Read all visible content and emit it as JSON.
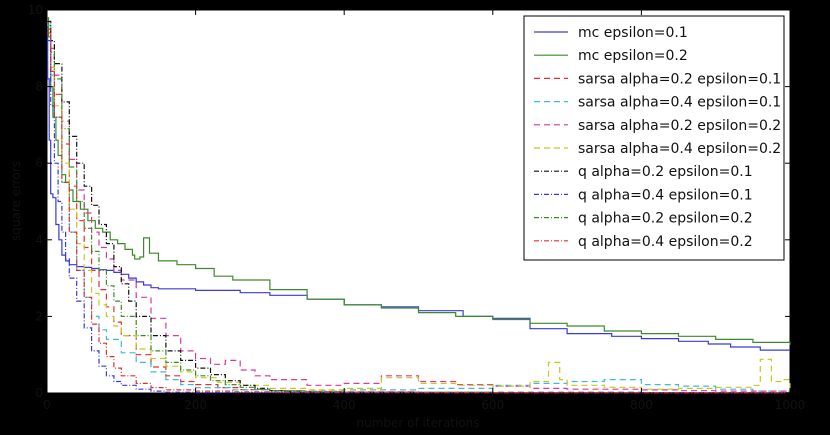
{
  "chart_data": {
    "type": "line",
    "title": "",
    "xlabel": "number of iterations",
    "ylabel": "square errors",
    "xlim": [
      0,
      1000
    ],
    "ylim": [
      0,
      10
    ],
    "xticks": [
      "0",
      "200",
      "400",
      "600",
      "800",
      "1000"
    ],
    "yticks": [
      "0",
      "2",
      "4",
      "6",
      "8",
      "10"
    ],
    "grid": false,
    "legend_position": "top-right",
    "series": [
      {
        "name": "mc epsilon=0.1",
        "color": "#3a3ad8",
        "style": "solid",
        "x": [
          0,
          1,
          3,
          5,
          8,
          12,
          16,
          20,
          25,
          30,
          40,
          50,
          60,
          70,
          80,
          90,
          100,
          110,
          120,
          130,
          140,
          150,
          200,
          260,
          300,
          350,
          400,
          450,
          500,
          560,
          600,
          650,
          700,
          760,
          800,
          850,
          890,
          920,
          960,
          1000
        ],
        "y": [
          9.6,
          8.2,
          6.6,
          5.2,
          5.1,
          4.4,
          4.0,
          3.6,
          3.45,
          3.35,
          3.3,
          3.28,
          3.25,
          3.22,
          3.2,
          3.15,
          3.1,
          3.0,
          2.9,
          2.82,
          2.75,
          2.72,
          2.68,
          2.62,
          2.55,
          2.45,
          2.3,
          2.25,
          2.15,
          2.0,
          1.95,
          1.68,
          1.55,
          1.48,
          1.42,
          1.35,
          1.28,
          1.2,
          1.12,
          1.12
        ]
      },
      {
        "name": "mc epsilon=0.2",
        "color": "#3d8a2a",
        "style": "solid",
        "x": [
          0,
          2,
          5,
          8,
          12,
          15,
          20,
          25,
          30,
          35,
          45,
          55,
          65,
          75,
          85,
          95,
          105,
          115,
          118,
          125,
          130,
          138,
          150,
          175,
          200,
          225,
          250,
          300,
          350,
          400,
          450,
          500,
          550,
          600,
          650,
          700,
          750,
          800,
          850,
          900,
          950,
          1000
        ],
        "y": [
          9.8,
          9.3,
          8.0,
          7.2,
          6.6,
          6.2,
          5.7,
          5.5,
          5.3,
          5.0,
          4.8,
          4.5,
          4.3,
          4.2,
          4.0,
          3.9,
          3.75,
          3.6,
          3.5,
          3.55,
          4.05,
          3.65,
          3.45,
          3.35,
          3.25,
          3.05,
          2.95,
          2.7,
          2.45,
          2.3,
          2.22,
          2.1,
          2.0,
          1.92,
          1.82,
          1.75,
          1.62,
          1.55,
          1.48,
          1.4,
          1.32,
          1.25
        ]
      },
      {
        "name": "sarsa alpha=0.2 epsilon=0.1",
        "color": "#e03030",
        "style": "dashed",
        "x": [
          0,
          5,
          10,
          20,
          30,
          40,
          50,
          60,
          70,
          80,
          90,
          100,
          120,
          140,
          160,
          180,
          200,
          230,
          260,
          300,
          350,
          400,
          500,
          600,
          700,
          800,
          900,
          1000
        ],
        "y": [
          9.4,
          8.4,
          7.8,
          6.5,
          5.4,
          4.5,
          3.8,
          3.2,
          2.7,
          2.25,
          1.85,
          1.5,
          1.0,
          0.68,
          0.45,
          0.3,
          0.22,
          0.14,
          0.09,
          0.06,
          0.04,
          0.03,
          0.02,
          0.02,
          0.02,
          0.01,
          0.01,
          0.01
        ]
      },
      {
        "name": "sarsa alpha=0.4 epsilon=0.1",
        "color": "#3fbcd8",
        "style": "dashed",
        "x": [
          0,
          5,
          10,
          20,
          30,
          40,
          50,
          60,
          70,
          80,
          100,
          120,
          140,
          160,
          180,
          200,
          250,
          300,
          350,
          400,
          500,
          600,
          650,
          700,
          750,
          800,
          850,
          900,
          950,
          1000
        ],
        "y": [
          9.6,
          8.3,
          7.2,
          5.5,
          4.2,
          3.2,
          2.5,
          2.0,
          1.65,
          1.4,
          1.05,
          0.8,
          0.55,
          0.35,
          0.22,
          0.14,
          0.08,
          0.05,
          0.05,
          0.08,
          0.12,
          0.2,
          0.25,
          0.3,
          0.35,
          0.22,
          0.18,
          0.1,
          0.05,
          0.05
        ]
      },
      {
        "name": "sarsa alpha=0.2 epsilon=0.2",
        "color": "#d63a9b",
        "style": "dashed",
        "x": [
          0,
          5,
          10,
          20,
          30,
          40,
          50,
          60,
          70,
          80,
          90,
          100,
          120,
          140,
          160,
          180,
          200,
          220,
          240,
          260,
          280,
          300,
          350,
          400,
          450,
          500,
          550,
          600,
          650,
          700,
          750,
          800,
          850,
          900,
          950,
          1000
        ],
        "y": [
          9.7,
          9.0,
          8.3,
          7.1,
          6.1,
          5.3,
          4.7,
          4.2,
          3.8,
          3.5,
          3.2,
          2.95,
          2.5,
          1.95,
          1.5,
          1.1,
          0.9,
          0.75,
          0.85,
          0.6,
          0.45,
          0.35,
          0.2,
          0.25,
          0.45,
          0.3,
          0.22,
          0.18,
          0.12,
          0.1,
          0.1,
          0.08,
          0.06,
          0.05,
          0.05,
          0.05
        ]
      },
      {
        "name": "sarsa alpha=0.4 epsilon=0.2",
        "color": "#c8c820",
        "style": "dashed",
        "x": [
          0,
          5,
          10,
          20,
          30,
          40,
          50,
          60,
          70,
          80,
          90,
          100,
          120,
          140,
          160,
          180,
          200,
          230,
          260,
          300,
          350,
          400,
          450,
          500,
          550,
          600,
          650,
          675,
          690,
          700,
          750,
          800,
          850,
          900,
          950,
          960,
          975,
          990,
          1000
        ],
        "y": [
          9.7,
          8.5,
          7.5,
          6.0,
          4.8,
          3.9,
          3.2,
          2.6,
          2.3,
          2.0,
          1.75,
          1.5,
          1.15,
          0.9,
          0.7,
          0.55,
          0.4,
          0.28,
          0.2,
          0.12,
          0.08,
          0.12,
          0.4,
          0.25,
          0.2,
          0.18,
          0.3,
          0.8,
          0.35,
          0.2,
          0.15,
          0.1,
          0.12,
          0.15,
          0.2,
          0.88,
          0.3,
          0.35,
          0.1
        ]
      },
      {
        "name": "q alpha=0.2 epsilon=0.1",
        "color": "#111111",
        "style": "dashdot",
        "x": [
          0,
          5,
          10,
          20,
          30,
          40,
          50,
          60,
          70,
          80,
          90,
          100,
          110,
          120,
          140,
          160,
          180,
          200,
          220,
          240,
          260,
          280,
          300,
          320,
          340,
          360,
          400,
          500,
          600,
          700,
          800,
          900,
          1000
        ],
        "y": [
          9.7,
          9.2,
          8.6,
          7.6,
          6.7,
          6.0,
          5.4,
          4.9,
          4.4,
          3.9,
          3.3,
          2.85,
          2.4,
          2.0,
          1.5,
          1.1,
          0.85,
          0.65,
          0.48,
          0.32,
          0.2,
          0.12,
          0.06,
          0.03,
          0.02,
          0.01,
          0.01,
          0.01,
          0.01,
          0.01,
          0.01,
          0.01,
          0.01
        ]
      },
      {
        "name": "q alpha=0.4 epsilon=0.1",
        "color": "#3a3ad8",
        "style": "dashdot",
        "x": [
          0,
          5,
          10,
          15,
          20,
          25,
          30,
          40,
          50,
          60,
          70,
          80,
          90,
          100,
          120,
          140,
          160,
          200,
          300,
          400,
          600,
          800,
          1000
        ],
        "y": [
          9.2,
          7.5,
          6.0,
          5.0,
          4.2,
          3.5,
          3.0,
          2.4,
          1.7,
          1.1,
          0.7,
          0.45,
          0.3,
          0.2,
          0.1,
          0.05,
          0.02,
          0.01,
          0.01,
          0.01,
          0.01,
          0.01,
          0.01
        ]
      },
      {
        "name": "q alpha=0.2 epsilon=0.2",
        "color": "#3d8a2a",
        "style": "dashdot",
        "x": [
          0,
          5,
          10,
          20,
          30,
          40,
          50,
          60,
          70,
          80,
          90,
          100,
          120,
          140,
          160,
          180,
          200,
          220,
          240,
          260,
          280,
          300,
          340,
          400,
          500,
          600,
          800,
          1000
        ],
        "y": [
          9.5,
          8.9,
          8.2,
          6.9,
          5.9,
          5.0,
          4.3,
          3.7,
          3.2,
          2.8,
          2.4,
          2.0,
          1.5,
          1.1,
          0.8,
          0.6,
          0.45,
          0.32,
          0.22,
          0.15,
          0.1,
          0.06,
          0.03,
          0.02,
          0.02,
          0.01,
          0.01,
          0.01
        ]
      },
      {
        "name": "q alpha=0.4 epsilon=0.2",
        "color": "#e03030",
        "style": "dashdot",
        "x": [
          0,
          5,
          10,
          20,
          30,
          40,
          50,
          60,
          70,
          80,
          90,
          100,
          120,
          140,
          160,
          200,
          250,
          300,
          400,
          500,
          600,
          800,
          1000
        ],
        "y": [
          9.5,
          8.4,
          7.2,
          5.5,
          4.2,
          3.2,
          2.5,
          1.8,
          1.3,
          0.95,
          0.65,
          0.45,
          0.25,
          0.14,
          0.08,
          0.05,
          0.03,
          0.02,
          0.02,
          0.01,
          0.01,
          0.01,
          0.01
        ]
      }
    ]
  }
}
